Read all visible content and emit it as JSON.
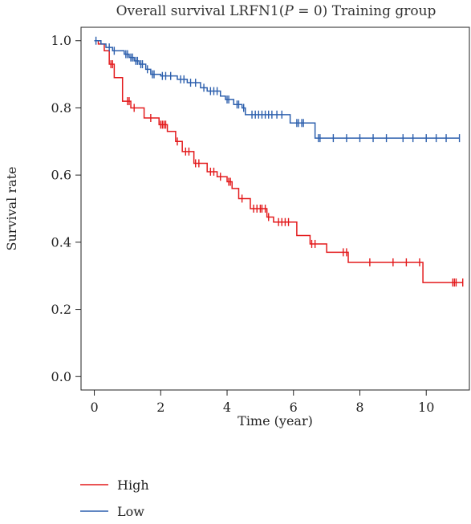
{
  "chart_data": {
    "type": "line",
    "title": "Overall survival LRFN1(P = 0) Training group",
    "title_parts": {
      "pre": "Overall survival LRFN1(",
      "p_symbol": "P",
      "post": " = 0) Training group"
    },
    "xlabel": "Time (year)",
    "ylabel": "Survival rate",
    "xlim": [
      -0.4,
      11.3
    ],
    "ylim": [
      -0.04,
      1.04
    ],
    "x_ticks": [
      0,
      2,
      4,
      6,
      8,
      10
    ],
    "y_ticks": [
      0.0,
      0.2,
      0.4,
      0.6,
      0.8,
      1.0
    ],
    "y_tick_labels": [
      "0.0",
      "0.2",
      "0.4",
      "0.6",
      "0.8",
      "1.0"
    ],
    "grid": false,
    "legend_position": "bottom-left",
    "series": [
      {
        "name": "High",
        "color": "#e31a1c",
        "steps": [
          [
            0,
            1.0
          ],
          [
            0.12,
            0.99
          ],
          [
            0.3,
            0.97
          ],
          [
            0.45,
            0.93
          ],
          [
            0.6,
            0.89
          ],
          [
            0.85,
            0.82
          ],
          [
            1.1,
            0.8
          ],
          [
            1.5,
            0.77
          ],
          [
            1.95,
            0.75
          ],
          [
            2.2,
            0.73
          ],
          [
            2.45,
            0.7
          ],
          [
            2.65,
            0.67
          ],
          [
            3.0,
            0.635
          ],
          [
            3.4,
            0.61
          ],
          [
            3.7,
            0.595
          ],
          [
            4.0,
            0.58
          ],
          [
            4.15,
            0.56
          ],
          [
            4.35,
            0.53
          ],
          [
            4.7,
            0.5
          ],
          [
            5.2,
            0.475
          ],
          [
            5.4,
            0.46
          ],
          [
            6.1,
            0.42
          ],
          [
            6.5,
            0.395
          ],
          [
            7.0,
            0.37
          ],
          [
            7.65,
            0.34
          ],
          [
            9.9,
            0.28
          ]
        ],
        "x_end": 11.1,
        "censor_x": [
          0.5,
          0.55,
          1.0,
          1.05,
          1.2,
          1.7,
          2.0,
          2.05,
          2.1,
          2.15,
          2.5,
          2.75,
          2.85,
          3.05,
          3.15,
          3.5,
          3.6,
          3.8,
          4.05,
          4.1,
          4.45,
          4.8,
          4.9,
          5.0,
          5.05,
          5.15,
          5.25,
          5.55,
          5.65,
          5.75,
          5.85,
          6.55,
          6.65,
          7.5,
          7.6,
          8.3,
          9.0,
          9.4,
          9.8,
          10.8,
          10.85,
          10.9,
          11.1
        ]
      },
      {
        "name": "Low",
        "color": "#2c5fad",
        "steps": [
          [
            0,
            1.0
          ],
          [
            0.2,
            0.99
          ],
          [
            0.35,
            0.98
          ],
          [
            0.55,
            0.97
          ],
          [
            0.9,
            0.96
          ],
          [
            1.05,
            0.95
          ],
          [
            1.2,
            0.94
          ],
          [
            1.35,
            0.93
          ],
          [
            1.55,
            0.915
          ],
          [
            1.7,
            0.9
          ],
          [
            2.0,
            0.895
          ],
          [
            2.5,
            0.885
          ],
          [
            2.8,
            0.875
          ],
          [
            3.2,
            0.86
          ],
          [
            3.4,
            0.85
          ],
          [
            3.8,
            0.835
          ],
          [
            3.95,
            0.825
          ],
          [
            4.2,
            0.81
          ],
          [
            4.45,
            0.8
          ],
          [
            4.55,
            0.78
          ],
          [
            5.9,
            0.755
          ],
          [
            6.65,
            0.71
          ]
        ],
        "x_end": 11.0,
        "censor_x": [
          0.05,
          0.45,
          0.6,
          0.95,
          1.0,
          1.1,
          1.15,
          1.25,
          1.3,
          1.4,
          1.45,
          1.6,
          1.75,
          1.8,
          2.05,
          2.15,
          2.3,
          2.6,
          2.7,
          2.9,
          3.05,
          3.3,
          3.5,
          3.6,
          3.7,
          4.0,
          4.05,
          4.3,
          4.35,
          4.5,
          4.75,
          4.85,
          4.95,
          5.05,
          5.15,
          5.25,
          5.35,
          5.5,
          5.65,
          6.1,
          6.15,
          6.25,
          6.3,
          6.75,
          6.8,
          7.2,
          7.6,
          8.0,
          8.4,
          8.8,
          9.3,
          9.6,
          10.0,
          10.3,
          10.6,
          11.0
        ]
      }
    ]
  }
}
